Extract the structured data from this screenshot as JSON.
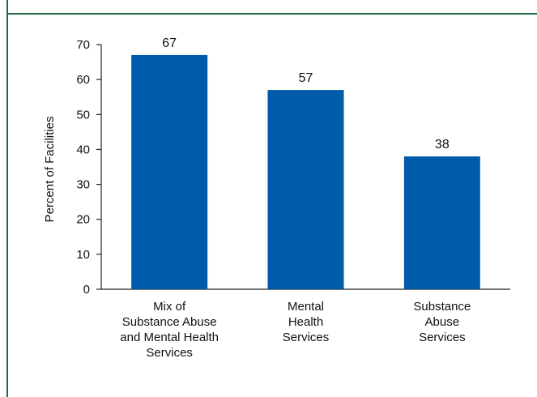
{
  "chart_data": {
    "type": "bar",
    "title": "",
    "xlabel": "",
    "ylabel": "Percent of Facilities",
    "ylim": [
      0,
      70
    ],
    "yticks": [
      0,
      10,
      20,
      30,
      40,
      50,
      60,
      70
    ],
    "categories": [
      [
        "Mix of",
        "Substance Abuse",
        "and Mental Health",
        "Services"
      ],
      [
        "Mental",
        "Health",
        "Services"
      ],
      [
        "Substance",
        "Abuse",
        "Services"
      ]
    ],
    "values": [
      67,
      57,
      38
    ],
    "data_labels": [
      "67",
      "57",
      "38"
    ],
    "grid": false,
    "bar_color": "#005BAA",
    "frame_color": "#1f6b45"
  }
}
